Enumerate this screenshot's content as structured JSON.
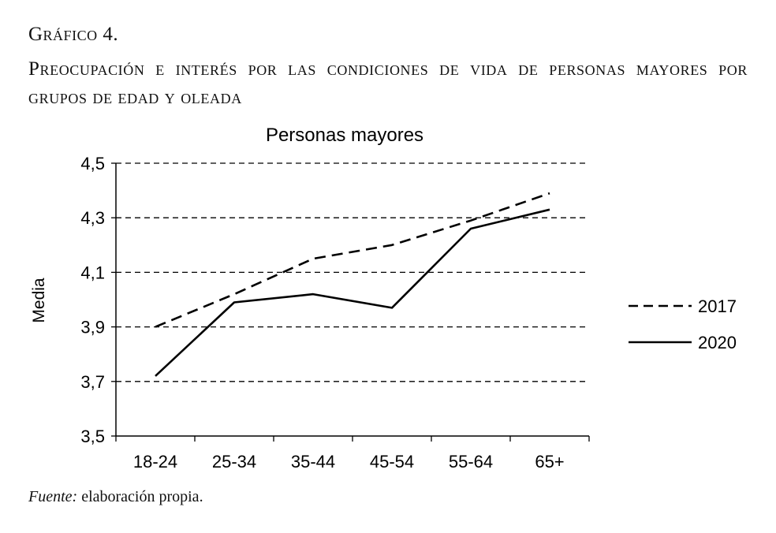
{
  "figure": {
    "label": "Gráfico 4.",
    "title": "Preocupación e interés por las condiciones de vida de personas mayores por grupos de edad y oleada",
    "source_label": "Fuente:",
    "source_text": " elaboración propia."
  },
  "chart_data": {
    "type": "line",
    "title": "Personas mayores",
    "xlabel": "",
    "ylabel": "Media",
    "categories": [
      "18-24",
      "25-34",
      "35-44",
      "45-54",
      "55-64",
      "65+"
    ],
    "ylim": [
      3.5,
      4.5
    ],
    "yticks": [
      "3,5",
      "3,7",
      "3,9",
      "4,1",
      "4,3",
      "4,5"
    ],
    "ytick_values": [
      3.5,
      3.7,
      3.9,
      4.1,
      4.3,
      4.5
    ],
    "grid": "horizontal dashed",
    "legend_position": "right",
    "series": [
      {
        "name": "2017",
        "style": "dashed",
        "color": "#000000",
        "values": [
          3.9,
          4.02,
          4.15,
          4.2,
          4.29,
          4.39
        ]
      },
      {
        "name": "2020",
        "style": "solid",
        "color": "#000000",
        "values": [
          3.72,
          3.99,
          4.02,
          3.97,
          4.26,
          4.33
        ]
      }
    ]
  }
}
